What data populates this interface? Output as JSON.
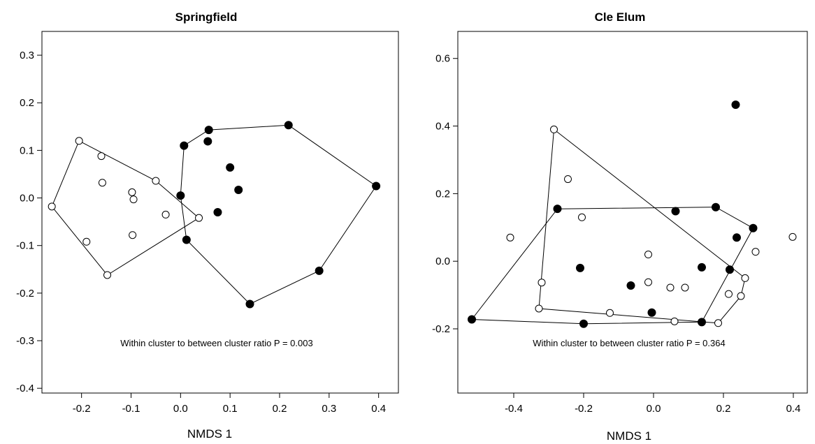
{
  "chart_data": [
    {
      "type": "scatter",
      "title": "Springfield",
      "xlabel": "NMDS 1",
      "ylabel": "",
      "xlim": [
        -0.28,
        0.44
      ],
      "ylim": [
        -0.41,
        0.35
      ],
      "xticks": [
        -0.2,
        -0.1,
        0.0,
        0.1,
        0.2,
        0.3,
        0.4
      ],
      "xtick_labels": [
        "-0.2",
        "-0.1",
        "0.0",
        "0.1",
        "0.2",
        "0.3",
        "0.4"
      ],
      "yticks": [
        0.3,
        0.2,
        0.1,
        0.0,
        -0.1,
        -0.2,
        -0.3,
        -0.4
      ],
      "ytick_labels": [
        "0.3",
        "0.2",
        "0.1",
        "0.0",
        "-0.1",
        "-0.2",
        "-0.3",
        "-0.4"
      ],
      "grid": false,
      "annotation": "Within cluster to between cluster ratio P = 0.003",
      "series": [
        {
          "marker": "open-circle",
          "points": [
            [
              -0.205,
              0.12
            ],
            [
              -0.16,
              0.088
            ],
            [
              -0.158,
              0.032
            ],
            [
              -0.098,
              0.012
            ],
            [
              -0.095,
              -0.003
            ],
            [
              -0.05,
              0.036
            ],
            [
              -0.03,
              -0.035
            ],
            [
              -0.097,
              -0.078
            ],
            [
              0.037,
              -0.042
            ],
            [
              -0.26,
              -0.018
            ],
            [
              -0.19,
              -0.092
            ],
            [
              -0.148,
              -0.162
            ]
          ],
          "hull": [
            [
              -0.205,
              0.12
            ],
            [
              -0.05,
              0.036
            ],
            [
              0.037,
              -0.042
            ],
            [
              -0.148,
              -0.162
            ],
            [
              -0.26,
              -0.018
            ]
          ]
        },
        {
          "marker": "filled-circle",
          "points": [
            [
              0.007,
              0.11
            ],
            [
              0.057,
              0.143
            ],
            [
              0.055,
              0.119
            ],
            [
              0.218,
              0.153
            ],
            [
              0.1,
              0.064
            ],
            [
              0.117,
              0.017
            ],
            [
              0.0,
              0.005
            ],
            [
              0.075,
              -0.03
            ],
            [
              0.012,
              -0.088
            ],
            [
              0.395,
              0.025
            ],
            [
              0.28,
              -0.153
            ],
            [
              0.14,
              -0.223
            ]
          ],
          "hull": [
            [
              0.007,
              0.11
            ],
            [
              0.057,
              0.143
            ],
            [
              0.218,
              0.153
            ],
            [
              0.395,
              0.025
            ],
            [
              0.28,
              -0.153
            ],
            [
              0.14,
              -0.223
            ],
            [
              0.012,
              -0.088
            ],
            [
              0.0,
              0.005
            ]
          ]
        }
      ]
    },
    {
      "type": "scatter",
      "title": "Cle Elum",
      "xlabel": "NMDS 1",
      "ylabel": "",
      "xlim": [
        -0.56,
        0.44
      ],
      "ylim": [
        -0.39,
        0.68
      ],
      "xticks": [
        -0.4,
        -0.2,
        0.0,
        0.2,
        0.4
      ],
      "xtick_labels": [
        "-0.4",
        "-0.2",
        "0.0",
        "0.2",
        "0.4"
      ],
      "yticks": [
        0.6,
        0.4,
        0.2,
        0.0,
        -0.2
      ],
      "ytick_labels": [
        "0.6",
        "0.4",
        "0.2",
        "0.0",
        "-0.2"
      ],
      "grid": false,
      "annotation": "Within cluster to between cluster ratio P = 0.364",
      "series": [
        {
          "marker": "open-circle",
          "points": [
            [
              -0.285,
              0.39
            ],
            [
              -0.245,
              0.243
            ],
            [
              -0.205,
              0.13
            ],
            [
              -0.41,
              0.07
            ],
            [
              -0.32,
              -0.063
            ],
            [
              -0.328,
              -0.14
            ],
            [
              -0.125,
              -0.153
            ],
            [
              -0.015,
              0.02
            ],
            [
              -0.015,
              -0.062
            ],
            [
              0.048,
              -0.078
            ],
            [
              0.09,
              -0.078
            ],
            [
              0.06,
              -0.178
            ],
            [
              0.185,
              -0.183
            ],
            [
              0.215,
              -0.097
            ],
            [
              0.25,
              -0.103
            ],
            [
              0.262,
              -0.05
            ],
            [
              0.292,
              0.028
            ],
            [
              0.398,
              0.072
            ]
          ],
          "hull": [
            [
              -0.285,
              0.39
            ],
            [
              0.262,
              -0.05
            ],
            [
              0.25,
              -0.103
            ],
            [
              0.185,
              -0.183
            ],
            [
              -0.328,
              -0.14
            ]
          ]
        },
        {
          "marker": "filled-circle",
          "points": [
            [
              0.235,
              0.463
            ],
            [
              -0.275,
              0.155
            ],
            [
              0.063,
              0.148
            ],
            [
              0.178,
              0.16
            ],
            [
              0.285,
              0.098
            ],
            [
              0.238,
              0.07
            ],
            [
              -0.21,
              -0.02
            ],
            [
              0.138,
              -0.018
            ],
            [
              0.218,
              -0.025
            ],
            [
              -0.065,
              -0.072
            ],
            [
              -0.005,
              -0.152
            ],
            [
              -0.2,
              -0.185
            ],
            [
              0.138,
              -0.18
            ],
            [
              -0.52,
              -0.172
            ]
          ],
          "hull": [
            [
              -0.275,
              0.155
            ],
            [
              0.178,
              0.16
            ],
            [
              0.285,
              0.098
            ],
            [
              0.138,
              -0.18
            ],
            [
              -0.2,
              -0.185
            ],
            [
              -0.52,
              -0.172
            ]
          ]
        }
      ]
    }
  ]
}
